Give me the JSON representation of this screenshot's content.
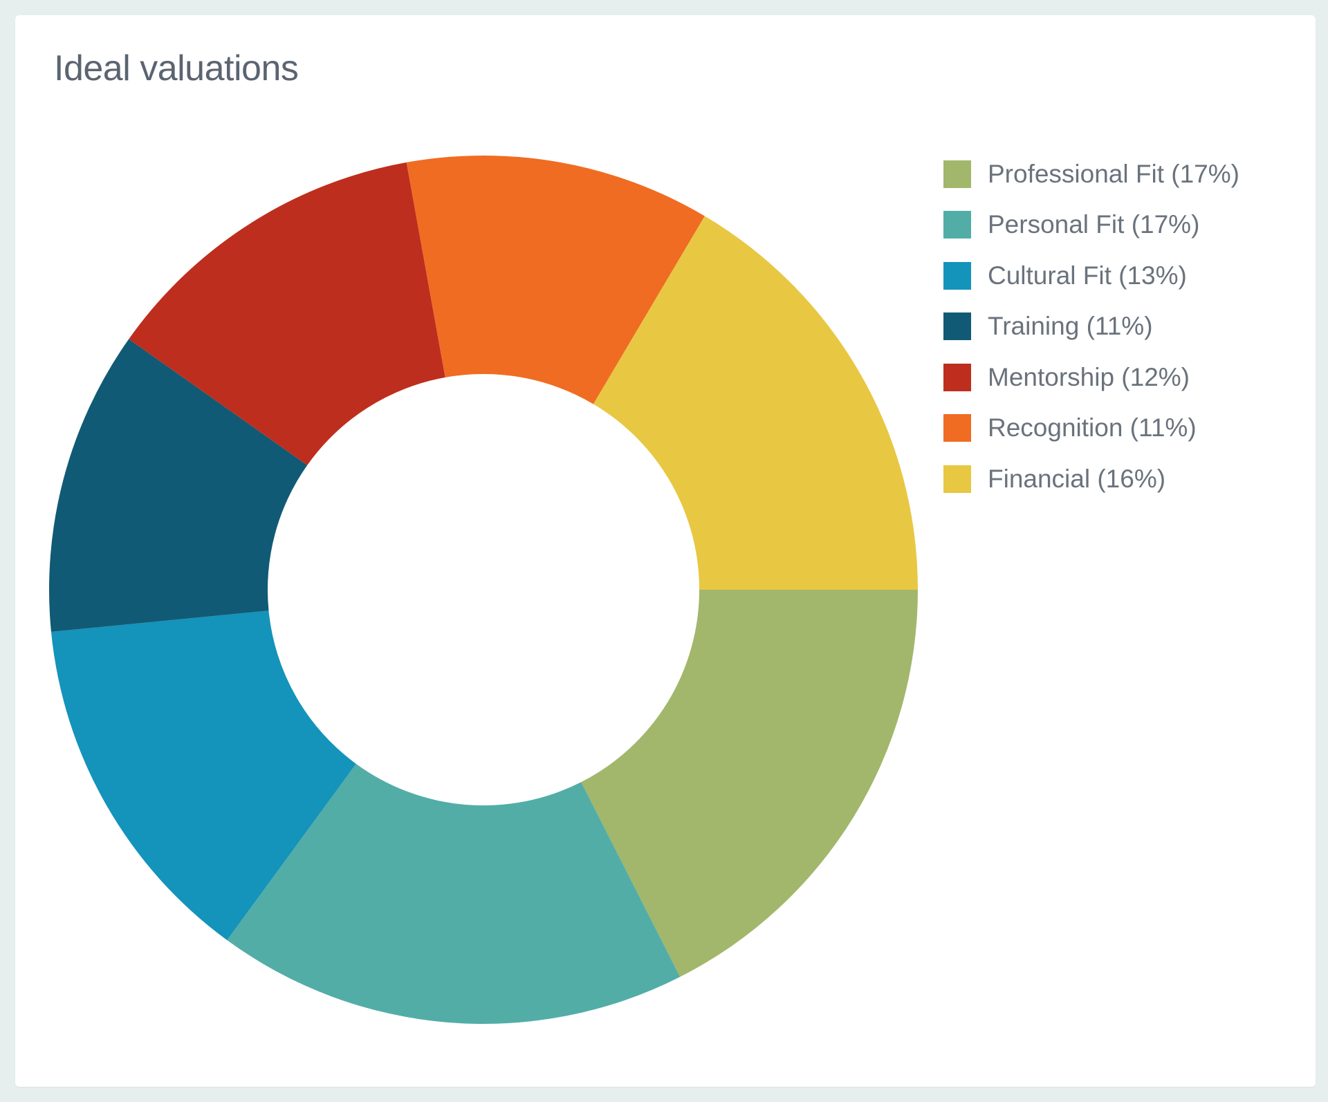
{
  "card": {
    "title": "Ideal valuations"
  },
  "chart_data": {
    "type": "pie",
    "variant": "donut",
    "title": "Ideal valuations",
    "legend_position": "right",
    "slices": [
      {
        "label": "Professional Fit",
        "value": 17,
        "legend_text": "Professional Fit (17%)",
        "color": "#a2b76b"
      },
      {
        "label": "Personal Fit",
        "value": 17,
        "legend_text": "Personal Fit (17%)",
        "color": "#52ada7"
      },
      {
        "label": "Cultural Fit",
        "value": 13,
        "legend_text": "Cultural Fit (13%)",
        "color": "#1493bb"
      },
      {
        "label": "Training",
        "value": 11,
        "legend_text": "Training (11%)",
        "color": "#115a75"
      },
      {
        "label": "Mentorship",
        "value": 12,
        "legend_text": "Mentorship (12%)",
        "color": "#be2e1e"
      },
      {
        "label": "Recognition",
        "value": 11,
        "legend_text": "Recognition (11%)",
        "color": "#f06c22"
      },
      {
        "label": "Financial",
        "value": 16,
        "legend_text": "Financial (16%)",
        "color": "#e8c743"
      }
    ]
  }
}
